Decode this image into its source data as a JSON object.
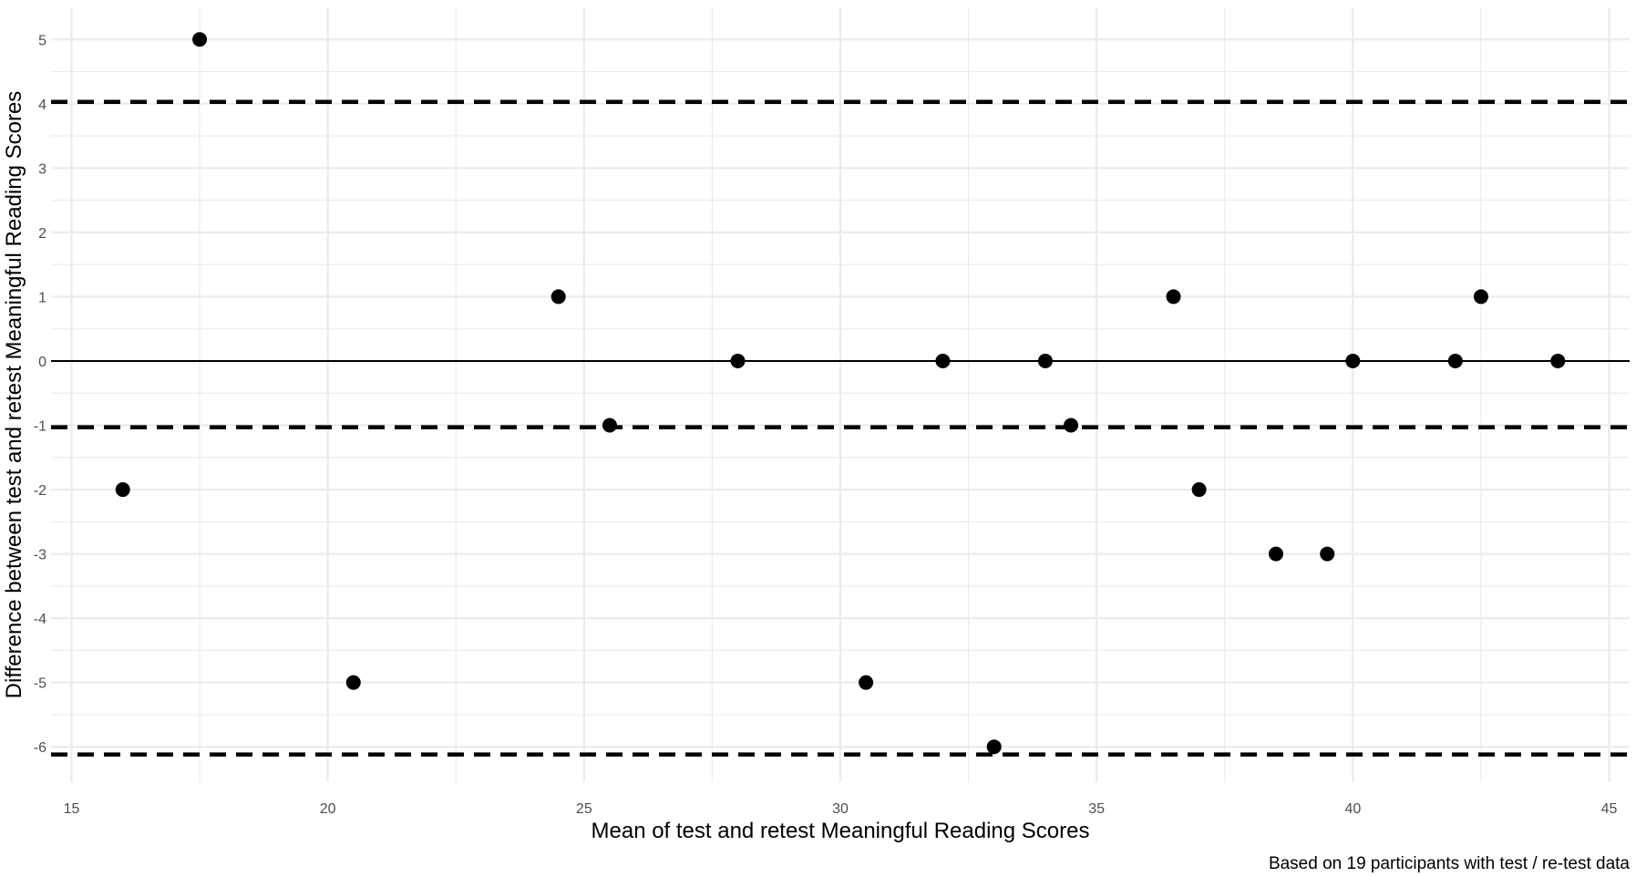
{
  "chart_data": {
    "type": "scatter",
    "xlabel": "Mean of test and retest Meaningful Reading Scores",
    "ylabel": "Difference between test and retest Meaningful Reading Scores",
    "caption": "Based on 19 participants with test / re-test data",
    "xlim": [
      14.6,
      45.4
    ],
    "ylim": [
      -6.55,
      5.5
    ],
    "x_ticks": [
      15,
      20,
      25,
      30,
      35,
      40,
      45
    ],
    "y_ticks": [
      5,
      4,
      3,
      2,
      1,
      0,
      -1,
      -2,
      -3,
      -4,
      -5,
      -6
    ],
    "grid": true,
    "reference_lines": [
      {
        "type": "solid",
        "y": 0
      },
      {
        "type": "dashed",
        "y": 4.03
      },
      {
        "type": "dashed",
        "y": -1.03
      },
      {
        "type": "dashed",
        "y": -6.12
      }
    ],
    "points": [
      {
        "x": 16.0,
        "y": -2
      },
      {
        "x": 17.5,
        "y": 5
      },
      {
        "x": 20.5,
        "y": -5
      },
      {
        "x": 24.5,
        "y": 1
      },
      {
        "x": 25.5,
        "y": -1
      },
      {
        "x": 28.0,
        "y": 0
      },
      {
        "x": 30.5,
        "y": -5
      },
      {
        "x": 32.0,
        "y": 0
      },
      {
        "x": 33.0,
        "y": -6
      },
      {
        "x": 34.0,
        "y": 0
      },
      {
        "x": 34.5,
        "y": -1
      },
      {
        "x": 36.5,
        "y": 1
      },
      {
        "x": 37.0,
        "y": -2
      },
      {
        "x": 38.5,
        "y": -3
      },
      {
        "x": 39.5,
        "y": -3
      },
      {
        "x": 40.0,
        "y": 0
      },
      {
        "x": 42.0,
        "y": 0
      },
      {
        "x": 42.5,
        "y": 1
      },
      {
        "x": 44.0,
        "y": 0
      }
    ],
    "colors": {
      "grid": "#ebebeb",
      "points": "#000000",
      "lines": "#000000"
    }
  }
}
